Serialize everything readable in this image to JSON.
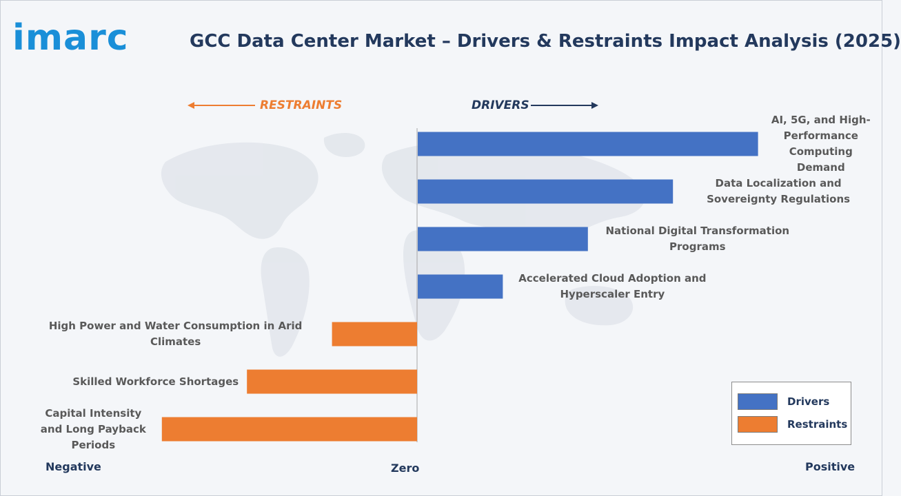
{
  "brand": {
    "logo_text": "imarc"
  },
  "header": {
    "title": "GCC Data Center Market – Drivers & Restraints Impact Analysis (2025)"
  },
  "direction_labels": {
    "restraints": "RESTRAINTS",
    "drivers": "DRIVERS"
  },
  "axis_labels": {
    "negative": "Negative",
    "zero": "Zero",
    "positive": "Positive"
  },
  "colors": {
    "drivers": "#4472c4",
    "restraints": "#ed7d31",
    "title": "#23395d",
    "logo": "#1a8fd8"
  },
  "legend": [
    {
      "label": "Drivers",
      "color": "#4472c4"
    },
    {
      "label": "Restraints",
      "color": "#ed7d31"
    }
  ],
  "chart_data": {
    "type": "bar",
    "orientation": "horizontal",
    "title": "GCC Data Center Market – Drivers & Restraints Impact Analysis (2025)",
    "xlim": [
      -10,
      10
    ],
    "grid": false,
    "legend_position": "bottom-right",
    "categories": [
      {
        "label": "AI, 5G, and High-Performance Computing Demand",
        "value": 8,
        "series": "Drivers"
      },
      {
        "label": "Data Localization and Sovereignty Regulations",
        "value": 6,
        "series": "Drivers"
      },
      {
        "label": "National Digital Transformation Programs",
        "value": 4,
        "series": "Drivers"
      },
      {
        "label": "Accelerated Cloud Adoption and Hyperscaler Entry",
        "value": 2,
        "series": "Drivers"
      },
      {
        "label": "High Power and Water Consumption in Arid Climates",
        "value": -2,
        "series": "Restraints"
      },
      {
        "label": "Skilled Workforce Shortages",
        "value": -4,
        "series": "Restraints"
      },
      {
        "label": "Capital Intensity and Long Payback Periods",
        "value": -6,
        "series": "Restraints"
      }
    ]
  }
}
